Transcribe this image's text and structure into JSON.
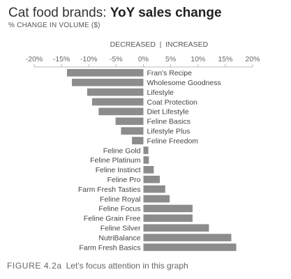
{
  "title_plain": "Cat food brands: ",
  "title_bold": "YoY sales change",
  "subtitle": "% CHANGE IN VOLUME ($)",
  "caption_figure": "FIGURE 4.2a",
  "caption_text": "Let's focus attention in this graph",
  "chart_data": {
    "type": "bar",
    "orientation": "horizontal",
    "axis_label_left": "DECREASED",
    "axis_label_separator": "|",
    "axis_label_right": "INCREASED",
    "xlim": [
      -20,
      20
    ],
    "x_ticks": [
      -20,
      -15,
      -10,
      -5,
      0,
      5,
      10,
      15,
      20
    ],
    "x_tick_labels": [
      "-20%",
      "-15%",
      "-10%",
      "-5%",
      "0%",
      "5%",
      "10%",
      "15%",
      "20%"
    ],
    "bar_color": "#8c8c8c",
    "axis_color": "#bbbbbb",
    "categories": [
      "Fran's Recipe",
      "Wholesome Goodness",
      "Lifestyle",
      "Coat Protection",
      "Diet Lifestyle",
      "Feline Basics",
      "Lifestyle Plus",
      "Feline Freedom",
      "Feline Gold",
      "Feline Platinum",
      "Feline Instinct",
      "Feline Pro",
      "Farm Fresh Tasties",
      "Feline Royal",
      "Feline Focus",
      "Feline Grain Free",
      "Feline Silver",
      "NutriBalance",
      "Farm Fresh Basics"
    ],
    "values": [
      -14,
      -13.1,
      -10.3,
      -9.4,
      -8.2,
      -5.1,
      -4.1,
      -2.1,
      0.9,
      1.0,
      1.9,
      3.0,
      4.0,
      4.8,
      9.0,
      9.0,
      12.0,
      16.1,
      17.0
    ]
  }
}
